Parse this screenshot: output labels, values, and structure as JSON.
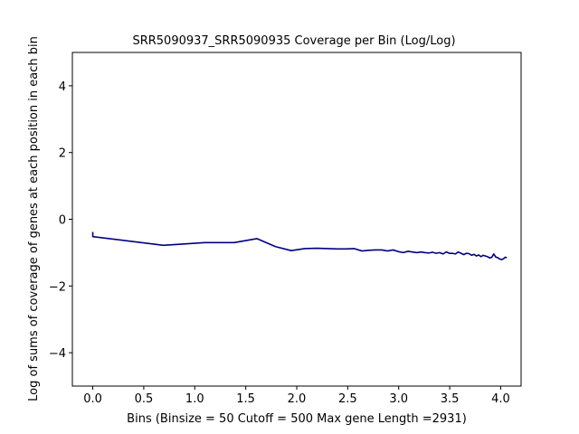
{
  "chart_data": {
    "type": "line",
    "title": "SRR5090937_SRR5090935 Coverage per Bin (Log/Log)",
    "xlabel": "Bins  (Binsize = 50 Cutoff = 500 Max gene Length =2931)",
    "ylabel": "Log of sums of coverage of genes at each position in each bin",
    "xlim": [
      -0.2,
      4.2
    ],
    "ylim": [
      -5,
      5
    ],
    "xticks": [
      0.0,
      0.5,
      1.0,
      1.5,
      2.0,
      2.5,
      3.0,
      3.5,
      4.0
    ],
    "xtick_labels": [
      "0.0",
      "0.5",
      "1.0",
      "1.5",
      "2.0",
      "2.5",
      "3.0",
      "3.5",
      "4.0"
    ],
    "yticks": [
      -4,
      -2,
      0,
      2,
      4
    ],
    "ytick_labels": [
      "−4",
      "−2",
      "0",
      "2",
      "4"
    ],
    "grid": false,
    "series": [
      {
        "color": "#000080",
        "x": [
          0.0,
          0.0,
          0.693,
          1.099,
          1.386,
          1.609,
          1.792,
          1.946,
          2.079,
          2.197,
          2.303,
          2.398,
          2.485,
          2.565,
          2.639,
          2.708,
          2.773,
          2.833,
          2.89,
          2.944,
          2.996,
          3.045,
          3.091,
          3.135,
          3.178,
          3.219,
          3.258,
          3.296,
          3.332,
          3.367,
          3.401,
          3.434,
          3.466,
          3.497,
          3.526,
          3.555,
          3.584,
          3.611,
          3.638,
          3.664,
          3.689,
          3.714,
          3.738,
          3.761,
          3.784,
          3.807,
          3.829,
          3.85,
          3.871,
          3.892,
          3.912,
          3.932,
          3.951,
          3.97,
          3.989,
          4.007,
          4.025,
          4.043,
          4.06
        ],
        "y": [
          -0.38,
          -0.52,
          -0.78,
          -0.7,
          -0.7,
          -0.58,
          -0.82,
          -0.94,
          -0.88,
          -0.87,
          -0.88,
          -0.89,
          -0.89,
          -0.88,
          -0.95,
          -0.93,
          -0.92,
          -0.92,
          -0.95,
          -0.92,
          -0.97,
          -1.0,
          -0.96,
          -0.98,
          -1.0,
          -0.98,
          -1.0,
          -1.01,
          -0.99,
          -1.02,
          -1.0,
          -1.04,
          -0.98,
          -1.02,
          -1.02,
          -1.04,
          -0.98,
          -1.02,
          -1.06,
          -1.02,
          -1.03,
          -1.08,
          -1.05,
          -1.1,
          -1.07,
          -1.12,
          -1.08,
          -1.1,
          -1.12,
          -1.16,
          -1.14,
          -1.04,
          -1.13,
          -1.15,
          -1.19,
          -1.21,
          -1.19,
          -1.14,
          -1.15
        ]
      }
    ]
  }
}
